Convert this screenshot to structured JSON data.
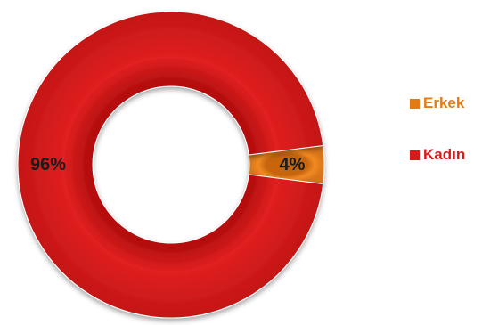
{
  "chart_data": {
    "type": "pie",
    "donut": true,
    "title": "",
    "categories": [
      "Erkek",
      "Kadın"
    ],
    "values": [
      4,
      96
    ],
    "labels": [
      "4%",
      "96%"
    ],
    "colors": [
      "#e47a14",
      "#d71b1b"
    ],
    "legend": {
      "position": "right",
      "entries": [
        {
          "label": "Erkek",
          "color": "#e47a14"
        },
        {
          "label": "Kadın",
          "color": "#d71b1b"
        }
      ]
    }
  }
}
